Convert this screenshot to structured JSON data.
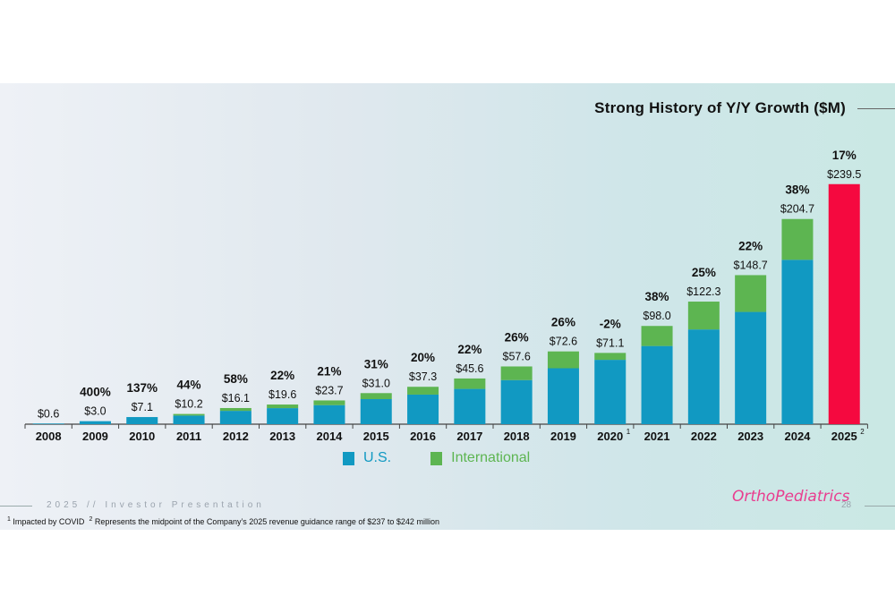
{
  "header": {
    "title": "Strong History of Y/Y Growth ($M)"
  },
  "legend": {
    "us_label": "U.S.",
    "intl_label": "International"
  },
  "colors": {
    "us": "#1199c2",
    "international": "#5db551",
    "guidance": "#f5093f"
  },
  "footer": {
    "presentation": "2025 // Investor Presentation",
    "page_number": "28",
    "logo_text": "OrthoPediatrics",
    "footnote1_mark": "1",
    "footnote1_text": " Impacted by COVID",
    "footnote2_mark": "2",
    "footnote2_text": " Represents the midpoint of the Company’s 2025 revenue guidance range of $237 to $242 million"
  },
  "chart_data": {
    "type": "bar",
    "title": "Strong History of Y/Y Growth ($M)",
    "categories": [
      "2008",
      "2009",
      "2010",
      "2011",
      "2012",
      "2013",
      "2014",
      "2015",
      "2016",
      "2017",
      "2018",
      "2019",
      "2020",
      "2021",
      "2022",
      "2023",
      "2024",
      "2025"
    ],
    "category_superscripts": [
      "",
      "",
      "",
      "",
      "",
      "",
      "",
      "",
      "",
      "",
      "",
      "",
      "1",
      "",
      "",
      "",
      "",
      "2"
    ],
    "totals": [
      0.6,
      3.0,
      7.1,
      10.2,
      16.1,
      19.6,
      23.7,
      31.0,
      37.3,
      45.6,
      57.6,
      72.6,
      71.1,
      98.0,
      122.3,
      148.7,
      204.7,
      239.5
    ],
    "total_labels": [
      "$0.6",
      "$3.0",
      "$7.1",
      "$10.2",
      "$16.1",
      "$19.6",
      "$23.7",
      "$31.0",
      "$37.3",
      "$45.6",
      "$57.6",
      "$72.6",
      "$71.1",
      "$98.0",
      "$122.3",
      "$148.7",
      "$204.7",
      "$239.5"
    ],
    "growth_labels": [
      "",
      "400%",
      "137%",
      "44%",
      "58%",
      "22%",
      "21%",
      "31%",
      "20%",
      "22%",
      "26%",
      "26%",
      "-2%",
      "38%",
      "25%",
      "22%",
      "38%",
      "17%"
    ],
    "series": [
      {
        "name": "U.S.",
        "values": [
          0.6,
          3.0,
          7.1,
          8.6,
          13.3,
          16.0,
          19.0,
          25.0,
          29.5,
          35.2,
          44.0,
          55.8,
          64.2,
          78.0,
          94.5,
          112.0,
          164.0,
          null
        ]
      },
      {
        "name": "International",
        "values": [
          0.0,
          0.0,
          0.0,
          1.6,
          2.8,
          3.6,
          4.7,
          6.0,
          7.8,
          10.4,
          13.6,
          16.8,
          6.9,
          20.0,
          27.8,
          36.7,
          40.7,
          null
        ]
      }
    ],
    "guidance_index": 17,
    "ylim": [
      0,
      250
    ],
    "grid": false
  }
}
